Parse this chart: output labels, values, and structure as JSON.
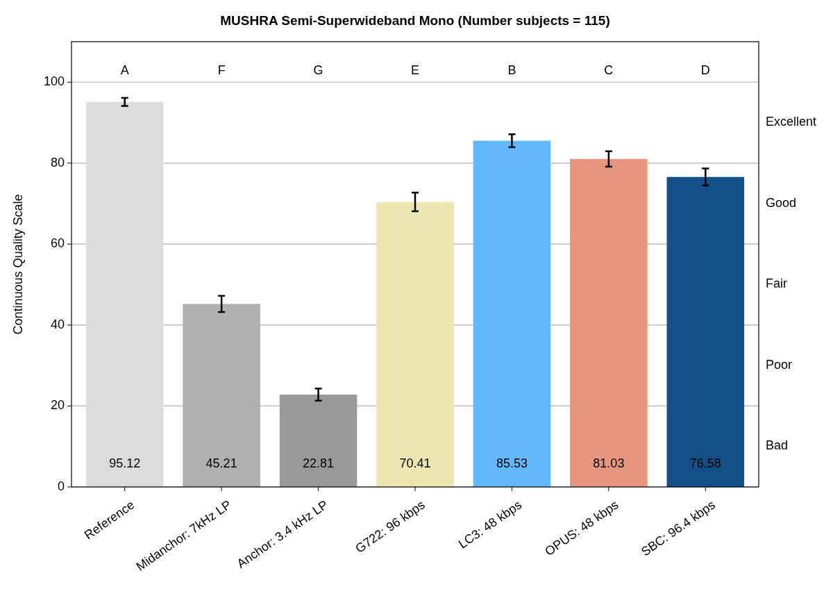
{
  "chart_data": {
    "type": "bar",
    "title": "MUSHRA Semi-Superwideband Mono (Number subjects = 115)",
    "ylabel": "Continuous Quality  Scale",
    "categories": [
      "Reference",
      "Midanchor: 7kHz LP",
      "Anchor: 3.4 kHz LP",
      "G722: 96 kbps",
      "LC3: 48 kbps",
      "OPUS: 48 kbps",
      "SBC: 96.4 kbps"
    ],
    "values": [
      95.12,
      45.21,
      22.81,
      70.41,
      85.53,
      81.03,
      76.58
    ],
    "colors": [
      "#dcdcdc",
      "#b0b0b0",
      "#999999",
      "#ede6b0",
      "#63b8f9",
      "#e6957e",
      "#154f87"
    ],
    "errors": [
      1,
      2,
      1.5,
      2.3,
      1.6,
      1.9,
      2.1
    ],
    "data_labels": true,
    "ylim": [
      0,
      110
    ],
    "yticks": [
      0,
      20,
      40,
      60,
      80,
      100
    ],
    "grid": "y",
    "annotations": [
      "A",
      "F",
      "G",
      "E",
      "B",
      "C",
      "D",
      "Excellent",
      "Good",
      "Fair",
      "Poor",
      "Bad"
    ]
  }
}
